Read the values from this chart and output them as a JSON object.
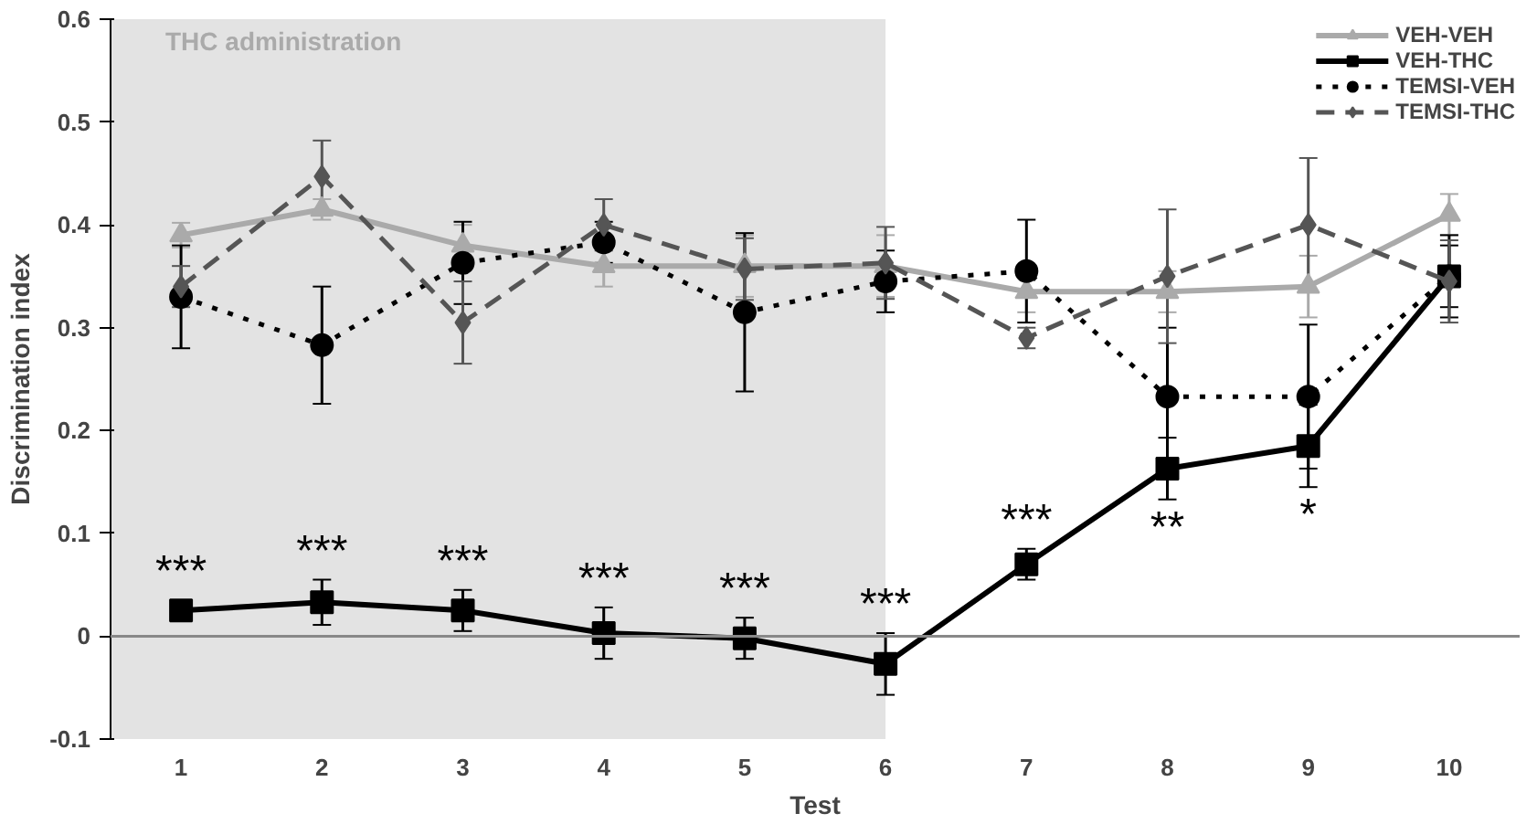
{
  "chart_data": {
    "type": "line",
    "xlabel": "Test",
    "ylabel": "Discrimination index",
    "x": [
      1,
      2,
      3,
      4,
      5,
      6,
      7,
      8,
      9,
      10
    ],
    "xlim": [
      0.5,
      10.5
    ],
    "xticks": [
      1,
      2,
      3,
      4,
      5,
      6,
      7,
      8,
      9,
      10
    ],
    "ylim": [
      -0.1,
      0.6
    ],
    "yticks": [
      -0.1,
      0,
      0.1,
      0.2,
      0.3,
      0.4,
      0.5,
      0.6
    ],
    "grid": false,
    "legend": "top right",
    "bands": [
      {
        "axis": "x",
        "from": 0.5,
        "to": 6,
        "label": "THC administration",
        "color": "#e3e3e3"
      }
    ],
    "ref_lines": [
      {
        "axis": "y",
        "value": 0,
        "color": "#888888"
      }
    ],
    "series": [
      {
        "name": "VEH-VEH",
        "color": "#aaaaaa",
        "marker": "triangle",
        "line_style": "solid",
        "values": [
          0.39,
          0.415,
          0.38,
          0.36,
          0.36,
          0.36,
          0.335,
          0.335,
          0.34,
          0.41
        ],
        "errors": [
          0.012,
          0.01,
          0.02,
          0.02,
          0.03,
          0.03,
          0.02,
          0.02,
          0.03,
          0.02
        ]
      },
      {
        "name": "VEH-THC",
        "color": "#000000",
        "marker": "square",
        "line_style": "solid",
        "values": [
          0.025,
          0.033,
          0.025,
          0.003,
          -0.002,
          -0.027,
          0.07,
          0.163,
          0.185,
          0.35
        ],
        "errors": [
          0.01,
          0.022,
          0.02,
          0.025,
          0.02,
          0.03,
          0.015,
          0.03,
          0.04,
          0.03
        ]
      },
      {
        "name": "TEMSI-VEH",
        "color": "#000000",
        "marker": "circle",
        "line_style": "dotted",
        "values": [
          0.33,
          0.283,
          0.363,
          0.383,
          0.315,
          0.345,
          0.355,
          0.233,
          0.233,
          0.35
        ],
        "errors": [
          0.05,
          0.057,
          0.04,
          0.02,
          0.077,
          0.03,
          0.05,
          0.067,
          0.07,
          0.04
        ]
      },
      {
        "name": "TEMSI-THC",
        "color": "#555555",
        "marker": "diamond",
        "line_style": "dashed",
        "values": [
          0.34,
          0.447,
          0.305,
          0.4,
          0.357,
          0.363,
          0.29,
          0.35,
          0.4,
          0.345
        ],
        "errors": [
          0.02,
          0.035,
          0.04,
          0.025,
          0.03,
          0.035,
          0.01,
          0.065,
          0.065,
          0.04
        ]
      }
    ],
    "annotations": [
      {
        "text": "***",
        "x": 1,
        "y": 0.025
      },
      {
        "text": "***",
        "x": 2,
        "y": 0.033
      },
      {
        "text": "***",
        "x": 3,
        "y": 0.025
      },
      {
        "text": "***",
        "x": 4,
        "y": 0.003
      },
      {
        "text": "***",
        "x": 5,
        "y": -0.002
      },
      {
        "text": "***",
        "x": 6,
        "y": -0.027
      },
      {
        "text": "***",
        "x": 7,
        "y": 0.07
      },
      {
        "text": "**",
        "x": 8,
        "y": 0.163
      },
      {
        "text": "*",
        "x": 9,
        "y": 0.185
      }
    ]
  }
}
